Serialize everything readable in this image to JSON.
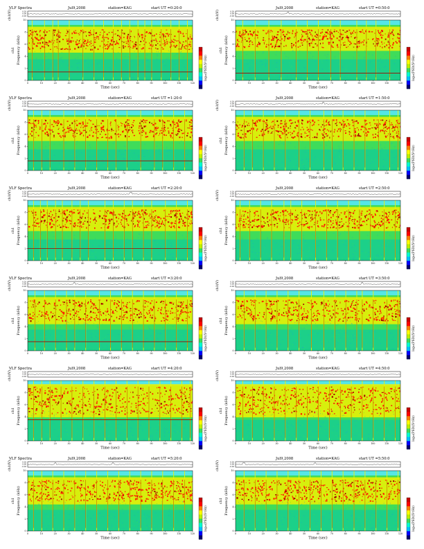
{
  "chart_data": [
    {
      "type": "heatmap",
      "title": "VLF Spectra",
      "date": "Jul9,2008",
      "station": "station=KAG",
      "start": "start  UT =0:20:0",
      "ylabel_top": "ch1(V)",
      "ylabel": "Frequency (kHz)",
      "ylabel_channel": "ch1",
      "xlabel": "Time (sec)",
      "colorbar_label": "log₁₀(PSD)(V²/Hz)",
      "ylim": [
        0,
        10
      ],
      "xlim": [
        0,
        120
      ],
      "yticks": [
        0,
        2,
        4,
        6,
        8,
        10
      ],
      "xticks": [
        0,
        10,
        20,
        30,
        40,
        50,
        60,
        70,
        80,
        90,
        100,
        110,
        120
      ],
      "wave_ticks": [
        "0.20",
        "0.00",
        "-0.20"
      ],
      "wave_spikes": [],
      "core_band": [
        5.2,
        8.5
      ],
      "baseline_line": 1.4,
      "bursts": [
        3,
        12,
        18,
        22,
        30,
        40,
        48,
        55,
        62,
        68,
        74,
        80,
        85,
        90,
        97,
        104,
        110,
        116
      ]
    },
    {
      "type": "heatmap",
      "title": "",
      "date": "Jul9,2008",
      "station": "station=KAG",
      "start": "start  UT =0:50:0",
      "ylabel_top": "ch1(V)",
      "ylabel": "Frequency (kHz)",
      "ylabel_channel": "ch1",
      "xlabel": "Time (sec)",
      "colorbar_label": "log₁₀(PSD)(V²/Hz)",
      "ylim": [
        0,
        10
      ],
      "xlim": [
        0,
        120
      ],
      "yticks": [
        0,
        2,
        4,
        6,
        8,
        10
      ],
      "xticks": [
        0,
        10,
        20,
        30,
        40,
        50,
        60,
        70,
        80,
        90,
        100,
        110,
        120
      ],
      "wave_ticks": [
        "0.20",
        "0.00",
        "-0.20"
      ],
      "wave_spikes": [
        38
      ],
      "core_band": [
        5.5,
        8.5
      ],
      "baseline_line": 1.2,
      "bursts": [
        5,
        14,
        24,
        33,
        44,
        52,
        60,
        69,
        76,
        88,
        95,
        102,
        112
      ]
    },
    {
      "type": "heatmap",
      "title": "VLF Spectra",
      "date": "Jul9,2008",
      "station": "station=KAG",
      "start": "start  UT =1:20:0",
      "ylabel_top": "ch1(V)",
      "ylabel": "Frequency (kHz)",
      "ylabel_channel": "ch1",
      "xlabel": "Time (sec)",
      "colorbar_label": "log₁₀(PSD)(V²/Hz)",
      "ylim": [
        0,
        10
      ],
      "xlim": [
        0,
        120
      ],
      "yticks": [
        0,
        2,
        4,
        6,
        8,
        10
      ],
      "xticks": [
        0,
        10,
        20,
        30,
        40,
        50,
        60,
        70,
        80,
        90,
        100,
        110,
        120
      ],
      "wave_ticks": [
        "0.20",
        "0.00",
        "-0.20"
      ],
      "wave_spikes": [],
      "core_band": [
        5.5,
        8.5
      ],
      "baseline_line": 1.6,
      "bursts": [
        4,
        10,
        16,
        26,
        34,
        42,
        50,
        58,
        64,
        72,
        82,
        92,
        98,
        106,
        114
      ]
    },
    {
      "type": "heatmap",
      "title": "",
      "date": "Jul9,2008",
      "station": "station=KAG",
      "start": "start  UT =1:50:0",
      "ylabel_top": "ch1(V)",
      "ylabel": "Frequency (kHz)",
      "ylabel_channel": "ch1",
      "xlabel": "Time (sec)",
      "colorbar_label": "log₁₀(PSD)(V²/Hz)",
      "ylim": [
        0,
        10
      ],
      "xlim": [
        0,
        120
      ],
      "yticks": [
        0,
        2,
        4,
        6,
        8,
        10
      ],
      "xticks": [
        0,
        10,
        20,
        30,
        40,
        50,
        60,
        70,
        80,
        90,
        100,
        110,
        120
      ],
      "wave_spikes": [
        64
      ],
      "wave_ticks": [
        "0.20",
        "0.00",
        "-0.20"
      ],
      "core_band": [
        5.5,
        8.5
      ],
      "baseline_line": null,
      "bursts": [
        6,
        12,
        20,
        28,
        36,
        46,
        54,
        64,
        70,
        78,
        86,
        94,
        104,
        112,
        118
      ]
    },
    {
      "type": "heatmap",
      "title": "VLF Spectra",
      "date": "Jul9,2008",
      "station": "station=KAG",
      "start": "start  UT =2:20:0",
      "ylabel_top": "ch1(V)",
      "ylabel": "Frequency (kHz)",
      "ylabel_channel": "ch1",
      "xlabel": "Time (sec)",
      "colorbar_label": "log₁₀(PSD)(V²/Hz)",
      "ylim": [
        0,
        10
      ],
      "xlim": [
        0,
        120
      ],
      "yticks": [
        0,
        2,
        4,
        6,
        8,
        10
      ],
      "xticks": [
        0,
        10,
        20,
        30,
        40,
        50,
        60,
        70,
        80,
        90,
        100,
        110,
        120
      ],
      "wave_ticks": [
        "0.20",
        "0.00",
        "-0.20"
      ],
      "wave_spikes": [
        75
      ],
      "core_band": [
        5.5,
        8.5
      ],
      "baseline_line": 2.0,
      "bursts": [
        4,
        9,
        14,
        20,
        25,
        32,
        38,
        44,
        56,
        62,
        70,
        76,
        84,
        90,
        100,
        108,
        116
      ]
    },
    {
      "type": "heatmap",
      "title": "",
      "date": "Jul9,2008",
      "station": "station=KAG",
      "start": "start  UT =2:50:0",
      "ylabel_top": "ch1(V)",
      "ylabel": "Frequency (kHz)",
      "ylabel_channel": "ch1",
      "xlabel": "Time (sec)",
      "colorbar_label": "log₁₀(PSD)(V²/Hz)",
      "ylim": [
        0,
        10
      ],
      "xlim": [
        0,
        120
      ],
      "yticks": [
        0,
        2,
        4,
        6,
        8,
        10
      ],
      "xticks": [
        0,
        10,
        20,
        30,
        40,
        50,
        60,
        70,
        80,
        90,
        100,
        110,
        120
      ],
      "wave_ticks": [
        "0.20",
        "0.00",
        "-0.20"
      ],
      "wave_spikes": [],
      "core_band": [
        5.5,
        8.5
      ],
      "baseline_line": null,
      "bursts": [
        3,
        10,
        18,
        26,
        35,
        40,
        48,
        58,
        66,
        74,
        82,
        90,
        98,
        108,
        116
      ]
    },
    {
      "type": "heatmap",
      "title": "VLF Spectra",
      "date": "Jul9,2008",
      "station": "station=KAG",
      "start": "start  UT =3:20:0",
      "ylabel_top": "ch1(V)",
      "ylabel": "Frequency (kHz)",
      "ylabel_channel": "ch1",
      "xlabel": "Time (sec)",
      "colorbar_label": "log₁₀(PSD)(V²/Hz)",
      "ylim": [
        0,
        10
      ],
      "xlim": [
        0,
        120
      ],
      "yticks": [
        0,
        2,
        4,
        6,
        8,
        10
      ],
      "xticks": [
        0,
        10,
        20,
        30,
        40,
        50,
        60,
        70,
        80,
        90,
        100,
        110,
        120
      ],
      "wave_ticks": [
        "0.20",
        "0.00",
        "-0.20"
      ],
      "wave_spikes": [
        34
      ],
      "core_band": [
        5.0,
        8.5
      ],
      "baseline_line": 1.5,
      "bursts": [
        5,
        12,
        20,
        28,
        34,
        42,
        52,
        60,
        68,
        76,
        84,
        92,
        100,
        108,
        116
      ]
    },
    {
      "type": "heatmap",
      "title": "",
      "date": "Jul9,2008",
      "station": "station=KAG",
      "start": "start  UT =3:50:0",
      "ylabel_top": "ch1(V)",
      "ylabel": "Frequency (kHz)",
      "ylabel_channel": "ch1",
      "xlabel": "Time (sec)",
      "colorbar_label": "log₁₀(PSD)(V²/Hz)",
      "ylim": [
        0,
        10
      ],
      "xlim": [
        0,
        120
      ],
      "yticks": [
        0,
        2,
        4,
        6,
        8,
        10
      ],
      "xticks": [
        0,
        10,
        20,
        30,
        40,
        50,
        60,
        70,
        80,
        90,
        100,
        110,
        120
      ],
      "wave_ticks": [
        "0.20",
        "0.00",
        "-0.20"
      ],
      "wave_spikes": [
        92
      ],
      "core_band": [
        5.0,
        8.5
      ],
      "baseline_line": null,
      "bursts": [
        6,
        14,
        22,
        30,
        38,
        46,
        55,
        64,
        72,
        80,
        88,
        92,
        100,
        110,
        118
      ]
    },
    {
      "type": "heatmap",
      "title": "VLF Spectra",
      "date": "Jul9,2008",
      "station": "station=KAG",
      "start": "start  UT =4:20:0",
      "ylabel_top": "ch1(V)",
      "ylabel": "Frequency (kHz)",
      "ylabel_channel": "ch1",
      "xlabel": "Time (sec)",
      "colorbar_label": "log₁₀(PSD)(V²/Hz)",
      "ylim": [
        0,
        10
      ],
      "xlim": [
        0,
        120
      ],
      "yticks": [
        0,
        2,
        4,
        6,
        8,
        10
      ],
      "xticks": [
        0,
        10,
        20,
        30,
        40,
        50,
        60,
        70,
        80,
        90,
        100,
        110,
        120
      ],
      "wave_ticks": [
        "0.20",
        "0.00",
        "-0.20"
      ],
      "wave_spikes": [],
      "core_band": [
        4.5,
        9.0
      ],
      "baseline_line": 3.5,
      "bursts": [
        4,
        10,
        16,
        24,
        32,
        40,
        48,
        56,
        64,
        72,
        80,
        88,
        96,
        104,
        112,
        118
      ]
    },
    {
      "type": "heatmap",
      "title": "",
      "date": "Jul9,2008",
      "station": "station=KAG",
      "start": "start  UT =4:50:0",
      "ylabel_top": "ch1(V)",
      "ylabel": "Frequency (kHz)",
      "ylabel_channel": "ch1",
      "xlabel": "Time (sec)",
      "colorbar_label": "log₁₀(PSD)(V²/Hz)",
      "ylim": [
        0,
        10
      ],
      "xlim": [
        0,
        120
      ],
      "yticks": [
        0,
        2,
        4,
        6,
        8,
        10
      ],
      "xticks": [
        0,
        10,
        20,
        30,
        40,
        50,
        60,
        70,
        80,
        90,
        100,
        110,
        120
      ],
      "wave_ticks": [
        "0.20",
        "0.00",
        "-0.20"
      ],
      "wave_spikes": [],
      "core_band": [
        4.5,
        9.0
      ],
      "baseline_line": null,
      "bursts": [
        5,
        12,
        20,
        28,
        36,
        44,
        52,
        60,
        68,
        76,
        84,
        92,
        100,
        108,
        116
      ]
    },
    {
      "type": "heatmap",
      "title": "VLF Spectra",
      "date": "Jul9,2008",
      "station": "station=KAG",
      "start": "start  UT =5:20:0",
      "ylabel_top": "ch1(V)",
      "ylabel": "Frequency (kHz)",
      "ylabel_channel": "ch1",
      "xlabel": "Time (sec)",
      "colorbar_label": "log₁₀(PSD)(V²/Hz)",
      "ylim": [
        0,
        10
      ],
      "xlim": [
        0,
        120
      ],
      "yticks": [
        0,
        2,
        4,
        6,
        8,
        10
      ],
      "xticks": [
        0,
        10,
        20,
        30,
        40,
        50,
        60,
        70,
        80,
        90,
        100,
        110,
        120
      ],
      "wave_ticks": [
        "0.20",
        "0.00",
        "-0.20"
      ],
      "wave_spikes": [
        20,
        62
      ],
      "core_band": [
        5.0,
        8.5
      ],
      "baseline_line": null,
      "bursts": [
        4,
        10,
        18,
        26,
        34,
        42,
        50,
        58,
        66,
        74,
        82,
        90,
        98,
        106,
        114
      ]
    },
    {
      "type": "heatmap",
      "title": "",
      "date": "Jul9,2008",
      "station": "station=KAG",
      "start": "start  UT =5:50:0",
      "ylabel_top": "ch1(V)",
      "ylabel": "Frequency (kHz)",
      "ylabel_channel": "ch1",
      "xlabel": "Time (sec)",
      "colorbar_label": "log₁₀(PSD)(V²/Hz)",
      "ylim": [
        0,
        10
      ],
      "xlim": [
        0,
        120
      ],
      "yticks": [
        0,
        2,
        4,
        6,
        8,
        10
      ],
      "xticks": [
        0,
        10,
        20,
        30,
        40,
        50,
        60,
        70,
        80,
        90,
        100,
        110,
        120
      ],
      "wave_ticks": [
        "0.20",
        "0.00",
        "-0.20"
      ],
      "wave_spikes": [
        6,
        58
      ],
      "core_band": [
        5.0,
        8.5
      ],
      "baseline_line": null,
      "bursts": [
        6,
        14,
        22,
        30,
        38,
        46,
        54,
        62,
        70,
        78,
        86,
        94,
        102,
        110,
        118
      ]
    }
  ],
  "colorbar": {
    "colors": [
      "#00006e",
      "#0000ff",
      "#00bfff",
      "#00ffd0",
      "#3fdc5a",
      "#bdf000",
      "#ffff00",
      "#ff7f00",
      "#ff0000",
      "#c80000"
    ],
    "ticks": [
      "-",
      "-"
    ]
  },
  "palette": {
    "cyan": "#55e6e6",
    "green": "#3fdc5a",
    "yellow": "#f2f200",
    "red": "#ff1a00",
    "darkred": "#a00000",
    "teal": "#00c6b0"
  }
}
